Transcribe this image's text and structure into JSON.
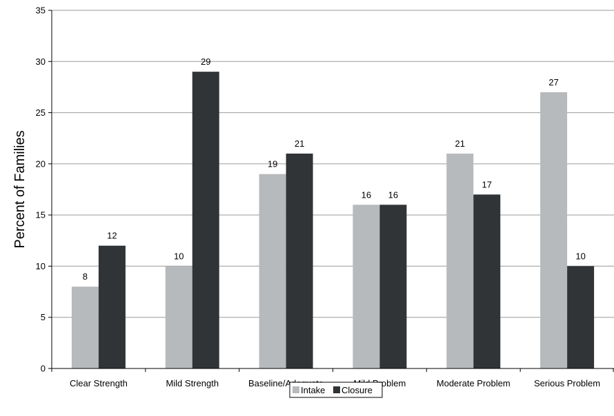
{
  "chart_data": {
    "type": "bar",
    "title": "",
    "xlabel": "",
    "ylabel": "Percent of Families",
    "ylim": [
      0,
      35
    ],
    "yticks": [
      0,
      5,
      10,
      15,
      20,
      25,
      30,
      35
    ],
    "categories": [
      "Clear Strength",
      "Mild Strength",
      "Baseline/Adequate",
      "Mild Problem",
      "Moderate Problem",
      "Serious Problem"
    ],
    "series": [
      {
        "name": "Intake",
        "color": "#b7babc",
        "values": [
          8,
          10,
          19,
          16,
          21,
          27
        ]
      },
      {
        "name": "Closure",
        "color": "#303436",
        "values": [
          12,
          29,
          21,
          16,
          17,
          10
        ]
      }
    ],
    "grid": true,
    "legend_position": "bottom"
  }
}
